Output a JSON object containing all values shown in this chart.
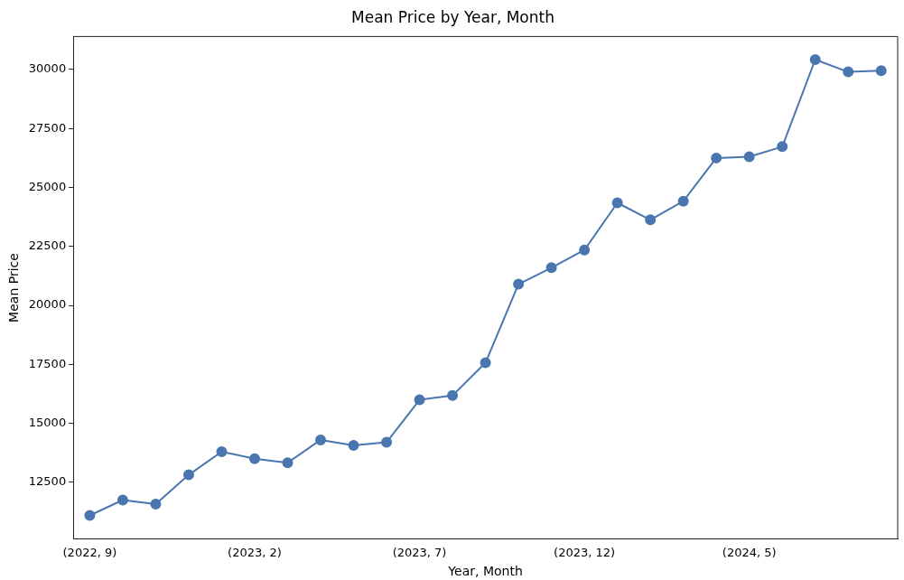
{
  "chart_data": {
    "type": "line",
    "title": "Mean Price by Year, Month",
    "xlabel": "Year, Month",
    "ylabel": "Mean Price",
    "categories": [
      "(2022, 9)",
      null,
      null,
      null,
      null,
      "(2023, 2)",
      null,
      null,
      null,
      null,
      "(2023, 7)",
      null,
      null,
      null,
      null,
      "(2023, 12)",
      null,
      null,
      null,
      null,
      "(2024, 5)",
      null,
      null,
      null,
      null
    ],
    "series": [
      {
        "color": "#4a76b0",
        "values": [
          11100,
          11750,
          11580,
          12820,
          13800,
          13500,
          13330,
          14300,
          14070,
          14200,
          16000,
          16180,
          17570,
          20900,
          21600,
          22350,
          24350,
          23630,
          24420,
          26250,
          26300,
          26730,
          30420,
          29900,
          29950
        ]
      }
    ],
    "ylim": [
      10100,
      31400
    ],
    "yticks": [
      12500,
      15000,
      17500,
      20000,
      22500,
      25000,
      27500,
      30000
    ],
    "grid": false,
    "legend": false,
    "marker": "circle",
    "line_style": "solid"
  }
}
